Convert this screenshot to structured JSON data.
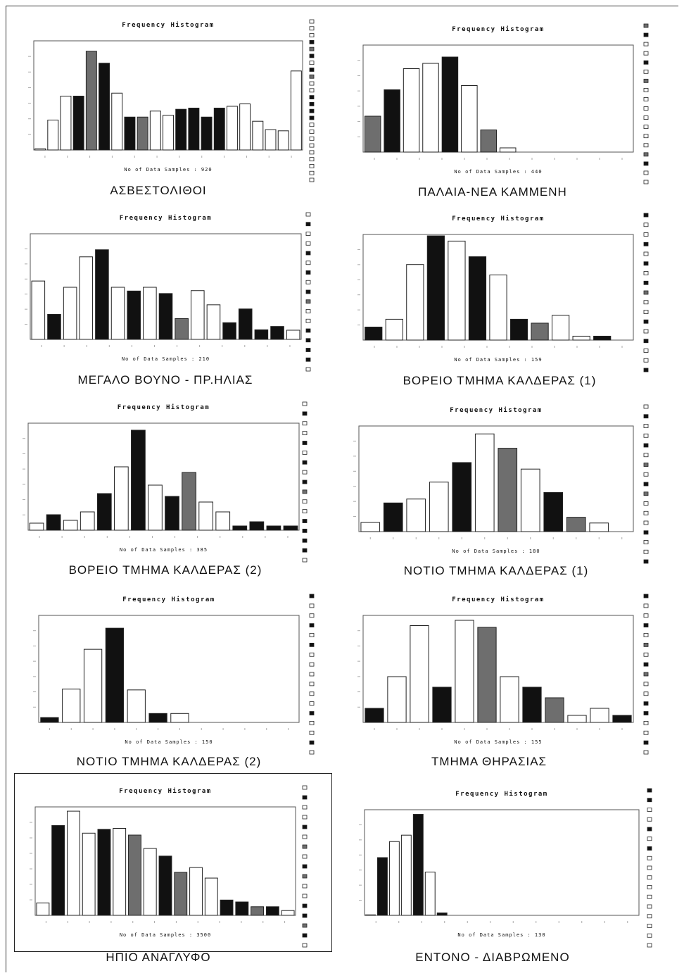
{
  "chart_data": [
    {
      "type": "bar",
      "title": "Frequency Histogram",
      "xlabel": "No of Data Samples : 920",
      "caption": "ΑΣΒΕΣΤΟΛΙΘΟΙ",
      "ylim": [
        0,
        180
      ],
      "values": [
        2,
        50,
        90,
        90,
        165,
        145,
        95,
        55,
        55,
        65,
        58,
        68,
        70,
        55,
        70,
        73,
        77,
        48,
        34,
        32,
        132
      ],
      "patterns": [
        "w",
        "w",
        "w",
        "d",
        "g",
        "d",
        "w",
        "d",
        "g",
        "w",
        "w",
        "d",
        "d",
        "d",
        "d",
        "w",
        "w",
        "w",
        "w",
        "w",
        "w"
      ],
      "legend_count": 24
    },
    {
      "type": "bar",
      "title": "Frequency Histogram",
      "xlabel": "No of Data Samples : 440",
      "caption": "ΠΑΛΑΙΑ-ΝΕΑ ΚΑΜΜΕΝΗ",
      "ylim": [
        0,
        100
      ],
      "values": [
        34,
        59,
        79,
        84,
        90,
        63,
        21,
        4,
        0,
        0,
        0,
        0,
        0,
        0
      ],
      "patterns": [
        "g",
        "d",
        "w",
        "w",
        "d",
        "w",
        "g",
        "w",
        "w",
        "w",
        "w",
        "w",
        "w",
        "w"
      ],
      "legend_count": 18
    },
    {
      "type": "bar",
      "title": "Frequency Histogram",
      "xlabel": "No of Data Samples : 210",
      "caption": "ΜΕΓΑΛΟ ΒΟΥΝΟ - ΠΡ.ΗΛΙΑΣ",
      "ylim": [
        0,
        25
      ],
      "values": [
        14,
        6,
        12.5,
        19.8,
        21.5,
        12.5,
        11.6,
        12.5,
        11,
        5,
        11.7,
        8.3,
        4,
        7.3,
        2.3,
        3.1,
        2.2
      ],
      "patterns": [
        "w",
        "d",
        "w",
        "w",
        "d",
        "w",
        "d",
        "w",
        "d",
        "g",
        "w",
        "w",
        "d",
        "d",
        "d",
        "d",
        "w"
      ],
      "legend_count": 17
    },
    {
      "type": "bar",
      "title": "Frequency Histogram",
      "xlabel": "No of Data Samples : 159",
      "caption": "ΒΟΡΕΙΟ ΤΜΗΜΑ ΚΑΛΔΕΡΑΣ (1)",
      "ylim": [
        0,
        40
      ],
      "values": [
        5,
        8,
        29,
        40,
        38,
        32,
        25,
        8,
        6.5,
        9.5,
        1.5,
        1.5,
        0
      ],
      "patterns": [
        "d",
        "w",
        "w",
        "d",
        "w",
        "d",
        "w",
        "d",
        "g",
        "w",
        "w",
        "d",
        "w"
      ],
      "legend_count": 17
    },
    {
      "type": "bar",
      "title": "Frequency Histogram",
      "xlabel": "No of Data Samples : 385",
      "caption": "ΒΟΡΕΙΟ ΤΜΗΜΑ ΚΑΛΔΕΡΑΣ (2)",
      "ylim": [
        0,
        75
      ],
      "values": [
        5,
        11,
        7,
        13,
        26,
        45,
        71,
        32,
        24,
        41,
        20,
        13,
        3,
        6,
        3,
        3
      ],
      "patterns": [
        "w",
        "d",
        "w",
        "w",
        "d",
        "w",
        "d",
        "w",
        "d",
        "g",
        "w",
        "w",
        "d",
        "d",
        "d",
        "d"
      ],
      "legend_count": 17
    },
    {
      "type": "bar",
      "title": "Frequency Histogram",
      "xlabel": "No of Data Samples : 180",
      "caption": "ΝΟΤΙΟ ΤΜΗΜΑ ΚΑΛΔΕΡΑΣ (1)",
      "ylim": [
        0,
        40
      ],
      "values": [
        3.5,
        11,
        12.5,
        19,
        26.5,
        37.5,
        32,
        24,
        15,
        5.5,
        3.3,
        0
      ],
      "patterns": [
        "w",
        "d",
        "w",
        "w",
        "d",
        "w",
        "g",
        "w",
        "d",
        "g",
        "w",
        "w"
      ],
      "legend_count": 17
    },
    {
      "type": "bar",
      "title": "Frequency Histogram",
      "xlabel": "No of Data Samples : 150",
      "caption": "ΝΟΤΙΟ ΤΜΗΜΑ ΚΑΛΔΕΡΑΣ (2)",
      "ylim": [
        0,
        65
      ],
      "values": [
        3,
        20.5,
        45,
        58,
        20,
        5.5,
        5.5,
        0,
        0,
        0,
        0,
        0
      ],
      "patterns": [
        "d",
        "w",
        "w",
        "d",
        "w",
        "d",
        "w",
        "w",
        "w",
        "w",
        "w",
        "w"
      ],
      "legend_count": 17
    },
    {
      "type": "bar",
      "title": "Frequency Histogram",
      "xlabel": "No of Data Samples : 155",
      "caption": "ΤΜΗΜΑ ΘΗΡΑΣΙΑΣ",
      "ylim": [
        0,
        30
      ],
      "values": [
        4,
        13,
        27.5,
        10,
        29,
        27,
        13,
        10,
        7,
        2,
        4,
        2
      ],
      "patterns": [
        "d",
        "w",
        "w",
        "d",
        "w",
        "g",
        "w",
        "d",
        "g",
        "w",
        "w",
        "d"
      ],
      "legend_count": 17
    },
    {
      "type": "bar",
      "title": "Frequency Histogram",
      "xlabel": "No of Data Samples : 3500",
      "caption": "ΗΠΙΟ ΑΝΑΓΛΥΦΟ",
      "ylim": [
        0,
        560
      ],
      "values": [
        65,
        470,
        545,
        430,
        450,
        455,
        420,
        350,
        310,
        225,
        250,
        195,
        80,
        70,
        45,
        45,
        25
      ],
      "patterns": [
        "w",
        "d",
        "w",
        "w",
        "d",
        "w",
        "g",
        "w",
        "d",
        "g",
        "w",
        "w",
        "d",
        "d",
        "g",
        "d",
        "w"
      ],
      "legend_count": 17
    },
    {
      "type": "bar",
      "title": "Frequency Histogram",
      "xlabel": "No of Data Samples : 130",
      "caption": "ΕΝΤΟΝΟ - ΔΙΑΒΡΩΜΕΝΟ",
      "ylim": [
        0,
        65
      ],
      "values": [
        0.3,
        36,
        46,
        50,
        63,
        27,
        1.5,
        0,
        0,
        0,
        0,
        0,
        0,
        0,
        0,
        0,
        0,
        0,
        0,
        0,
        0,
        0,
        0
      ],
      "patterns": [
        "d",
        "d",
        "w",
        "w",
        "d",
        "w",
        "d",
        "w",
        "w",
        "w",
        "w",
        "w",
        "w",
        "w",
        "w",
        "w",
        "w",
        "w",
        "w",
        "w",
        "w",
        "w",
        "w"
      ],
      "legend_count": 17
    }
  ]
}
